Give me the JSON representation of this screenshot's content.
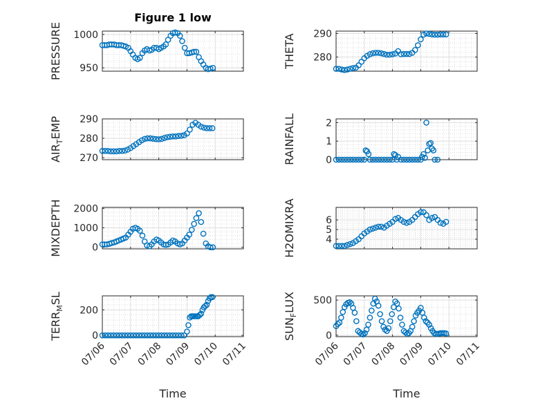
{
  "figure_title": "Figure 1 low",
  "chart_data": [
    {
      "type": "scatter",
      "ylabel": "PRESSURE",
      "title": "Figure 1 low",
      "xlabel": "",
      "xlim": [
        0,
        5
      ],
      "ylim": [
        945,
        1005
      ],
      "yticks": [
        950,
        1000
      ],
      "xticks": [
        0,
        1,
        2,
        3,
        4,
        5
      ],
      "grid": true,
      "marker_color": "#0072BD",
      "x": [
        0,
        0.08,
        0.16,
        0.25,
        0.33,
        0.42,
        0.5,
        0.58,
        0.67,
        0.75,
        0.83,
        0.92,
        1.0,
        1.08,
        1.17,
        1.25,
        1.33,
        1.42,
        1.5,
        1.58,
        1.67,
        1.75,
        1.83,
        1.92,
        2.0,
        2.08,
        2.17,
        2.25,
        2.33,
        2.42,
        2.5,
        2.58,
        2.67,
        2.75,
        2.83,
        2.92,
        3.0,
        3.08,
        3.17,
        3.25,
        3.33,
        3.42,
        3.5,
        3.58,
        3.67,
        3.75,
        3.83,
        3.92
      ],
      "y": [
        984,
        984,
        984,
        985,
        985,
        985,
        984,
        984,
        984,
        983,
        982,
        980,
        975,
        970,
        965,
        963,
        965,
        972,
        976,
        978,
        976,
        977,
        980,
        980,
        978,
        980,
        982,
        985,
        992,
        998,
        1002,
        1003,
        1002,
        998,
        990,
        980,
        972,
        972,
        973,
        974,
        974,
        966,
        960,
        955,
        950,
        948,
        949,
        950
      ]
    },
    {
      "type": "scatter",
      "ylabel": "THETA",
      "xlabel": "",
      "xlim": [
        0,
        5
      ],
      "ylim": [
        274,
        291
      ],
      "yticks": [
        280,
        290
      ],
      "xticks": [
        0,
        1,
        2,
        3,
        4,
        5
      ],
      "grid": true,
      "marker_color": "#0072BD",
      "x": [
        0,
        0.1,
        0.2,
        0.3,
        0.4,
        0.5,
        0.6,
        0.7,
        0.8,
        0.9,
        1.0,
        1.1,
        1.2,
        1.3,
        1.4,
        1.5,
        1.6,
        1.7,
        1.8,
        1.9,
        2.0,
        2.1,
        2.2,
        2.3,
        2.4,
        2.5,
        2.6,
        2.7,
        2.8,
        2.9,
        3.0,
        3.1,
        3.2,
        3.3,
        3.4,
        3.5,
        3.6,
        3.7,
        3.8,
        3.9
      ],
      "y": [
        275,
        275,
        274.7,
        274.5,
        274.7,
        275,
        275.3,
        275.5,
        276.5,
        278,
        279.5,
        280.5,
        281.2,
        281.6,
        281.8,
        281.8,
        281.6,
        281.3,
        281,
        281,
        281.2,
        281.5,
        282.5,
        281.2,
        281.3,
        281.3,
        281.3,
        281.8,
        283,
        285,
        287.5,
        289.5,
        290,
        289.8,
        289.6,
        289.5,
        289.5,
        289.6,
        289.6,
        289.6
      ]
    },
    {
      "type": "scatter",
      "ylabel": "AIR_TEMP",
      "xlabel": "",
      "xlim": [
        0,
        5
      ],
      "ylim": [
        269,
        290
      ],
      "yticks": [
        270,
        280,
        290
      ],
      "xticks": [
        0,
        1,
        2,
        3,
        4,
        5
      ],
      "grid": true,
      "marker_color": "#0072BD",
      "x": [
        0,
        0.1,
        0.2,
        0.3,
        0.4,
        0.5,
        0.6,
        0.7,
        0.8,
        0.9,
        1.0,
        1.1,
        1.2,
        1.3,
        1.4,
        1.5,
        1.6,
        1.7,
        1.8,
        1.9,
        2.0,
        2.1,
        2.2,
        2.3,
        2.4,
        2.5,
        2.6,
        2.7,
        2.8,
        2.9,
        3.0,
        3.1,
        3.2,
        3.3,
        3.4,
        3.5,
        3.6,
        3.7,
        3.8,
        3.9
      ],
      "y": [
        273.5,
        273.5,
        273.5,
        273.3,
        273.3,
        273.3,
        273.5,
        273.5,
        273.7,
        274.2,
        275,
        276,
        277,
        278,
        279,
        279.7,
        280,
        280,
        279.8,
        279.6,
        279.5,
        279.7,
        280.2,
        280.6,
        280.8,
        281,
        281,
        281.2,
        281.3,
        281.6,
        282.5,
        284.5,
        287,
        288,
        287,
        286,
        285.5,
        285.2,
        285.2,
        285.2
      ]
    },
    {
      "type": "scatter",
      "ylabel": "RAINFALL",
      "xlabel": "",
      "xlim": [
        0,
        5
      ],
      "ylim": [
        0,
        2.2
      ],
      "yticks": [
        0,
        1,
        2
      ],
      "xticks": [
        0,
        1,
        2,
        3,
        4,
        5
      ],
      "grid": true,
      "marker_color": "#0072BD",
      "x": [
        0,
        0.1,
        0.2,
        0.3,
        0.4,
        0.5,
        0.6,
        0.7,
        0.8,
        0.9,
        1.0,
        1.05,
        1.1,
        1.15,
        1.2,
        1.3,
        1.4,
        1.5,
        1.6,
        1.7,
        1.8,
        1.9,
        2.0,
        2.05,
        2.1,
        2.15,
        2.2,
        2.3,
        2.4,
        2.5,
        2.6,
        2.7,
        2.8,
        2.9,
        3.0,
        3.05,
        3.1,
        3.15,
        3.2,
        3.25,
        3.3,
        3.35,
        3.4,
        3.45,
        3.5,
        3.6
      ],
      "y": [
        0,
        0,
        0,
        0,
        0,
        0,
        0,
        0,
        0,
        0,
        0,
        0.5,
        0.45,
        0.3,
        0,
        0,
        0,
        0,
        0,
        0,
        0,
        0,
        0,
        0.3,
        0.25,
        0,
        0.15,
        0,
        0,
        0,
        0,
        0,
        0,
        0,
        0,
        0.15,
        0.3,
        0.1,
        2.0,
        0.5,
        0.85,
        0.9,
        0.6,
        0.5,
        0,
        0
      ]
    },
    {
      "type": "scatter",
      "ylabel": "MIXDEPTH",
      "xlabel": "",
      "xlim": [
        0,
        5
      ],
      "ylim": [
        -80,
        2050
      ],
      "yticks": [
        0,
        1000,
        2000
      ],
      "xticks": [
        0,
        1,
        2,
        3,
        4,
        5
      ],
      "grid": true,
      "marker_color": "#0072BD",
      "x": [
        0,
        0.08,
        0.16,
        0.25,
        0.33,
        0.42,
        0.5,
        0.58,
        0.67,
        0.75,
        0.83,
        0.92,
        1.0,
        1.08,
        1.17,
        1.25,
        1.33,
        1.42,
        1.5,
        1.58,
        1.67,
        1.75,
        1.83,
        1.92,
        2.0,
        2.08,
        2.17,
        2.25,
        2.33,
        2.42,
        2.5,
        2.58,
        2.67,
        2.75,
        2.83,
        2.92,
        3.0,
        3.08,
        3.17,
        3.25,
        3.33,
        3.42,
        3.5,
        3.58,
        3.67,
        3.75,
        3.83,
        3.92
      ],
      "y": [
        150,
        150,
        150,
        180,
        220,
        250,
        300,
        350,
        400,
        450,
        500,
        650,
        800,
        950,
        1000,
        950,
        850,
        600,
        300,
        100,
        50,
        150,
        300,
        400,
        350,
        250,
        150,
        120,
        150,
        250,
        350,
        300,
        200,
        150,
        200,
        350,
        500,
        650,
        900,
        1200,
        1500,
        1750,
        1300,
        700,
        200,
        50,
        0,
        0
      ]
    },
    {
      "type": "scatter",
      "ylabel": "H2OMIXRA",
      "xlabel": "",
      "xlim": [
        0,
        5
      ],
      "ylim": [
        3.0,
        7.3
      ],
      "yticks": [
        4,
        5,
        6
      ],
      "xticks": [
        0,
        1,
        2,
        3,
        4,
        5
      ],
      "grid": true,
      "marker_color": "#0072BD",
      "x": [
        0,
        0.1,
        0.2,
        0.3,
        0.4,
        0.5,
        0.6,
        0.7,
        0.8,
        0.9,
        1.0,
        1.1,
        1.2,
        1.3,
        1.4,
        1.5,
        1.6,
        1.7,
        1.8,
        1.9,
        2.0,
        2.1,
        2.2,
        2.3,
        2.4,
        2.5,
        2.6,
        2.7,
        2.8,
        2.9,
        3.0,
        3.1,
        3.2,
        3.3,
        3.4,
        3.5,
        3.6,
        3.7,
        3.8,
        3.9
      ],
      "y": [
        3.3,
        3.3,
        3.3,
        3.3,
        3.4,
        3.5,
        3.6,
        3.8,
        4.0,
        4.3,
        4.6,
        4.8,
        5.0,
        5.1,
        5.2,
        5.3,
        5.3,
        5.2,
        5.4,
        5.6,
        5.8,
        6.1,
        6.2,
        6.0,
        5.8,
        5.7,
        5.8,
        6.0,
        6.3,
        6.6,
        6.8,
        6.8,
        6.5,
        6.0,
        6.2,
        6.3,
        6.0,
        5.7,
        5.6,
        5.8
      ]
    },
    {
      "type": "scatter",
      "ylabel": "TERR_MSL",
      "xlabel": "Time",
      "xlim": [
        0,
        5
      ],
      "ylim": [
        -10,
        310
      ],
      "yticks": [
        0,
        200
      ],
      "xticks": [
        0,
        1,
        2,
        3,
        4,
        5
      ],
      "xticklabels": [
        "07/06",
        "07/07",
        "07/08",
        "07/09",
        "07/10",
        "07/11"
      ],
      "grid": true,
      "marker_color": "#0072BD",
      "x": [
        0,
        0.1,
        0.2,
        0.3,
        0.4,
        0.5,
        0.6,
        0.7,
        0.8,
        0.9,
        1.0,
        1.1,
        1.2,
        1.3,
        1.4,
        1.5,
        1.6,
        1.7,
        1.8,
        1.9,
        2.0,
        2.1,
        2.2,
        2.3,
        2.4,
        2.5,
        2.6,
        2.7,
        2.8,
        2.9,
        3.0,
        3.05,
        3.1,
        3.15,
        3.2,
        3.25,
        3.3,
        3.35,
        3.4,
        3.45,
        3.5,
        3.55,
        3.6,
        3.65,
        3.7,
        3.75,
        3.8,
        3.85,
        3.9
      ],
      "y": [
        0,
        0,
        0,
        0,
        0,
        0,
        0,
        0,
        0,
        0,
        0,
        0,
        0,
        0,
        0,
        0,
        0,
        0,
        0,
        0,
        0,
        0,
        0,
        0,
        0,
        0,
        0,
        0,
        0,
        0,
        30,
        80,
        140,
        150,
        150,
        150,
        150,
        150,
        150,
        160,
        170,
        200,
        220,
        230,
        240,
        270,
        290,
        300,
        300
      ]
    },
    {
      "type": "scatter",
      "ylabel": "SUN_FLUX",
      "xlabel": "Time",
      "xlim": [
        0,
        5
      ],
      "ylim": [
        -20,
        560
      ],
      "yticks": [
        0,
        500
      ],
      "xticks": [
        0,
        1,
        2,
        3,
        4,
        5
      ],
      "xticklabels": [
        "07/06",
        "07/07",
        "07/08",
        "07/09",
        "07/10",
        "07/11"
      ],
      "grid": true,
      "marker_color": "#0072BD",
      "x": [
        0,
        0.06,
        0.12,
        0.18,
        0.24,
        0.3,
        0.36,
        0.42,
        0.48,
        0.54,
        0.6,
        0.66,
        0.72,
        0.78,
        0.84,
        0.9,
        0.96,
        1.02,
        1.08,
        1.14,
        1.2,
        1.26,
        1.32,
        1.38,
        1.44,
        1.5,
        1.56,
        1.62,
        1.68,
        1.74,
        1.8,
        1.86,
        1.92,
        1.98,
        2.04,
        2.1,
        2.16,
        2.22,
        2.28,
        2.34,
        2.4,
        2.46,
        2.52,
        2.58,
        2.64,
        2.7,
        2.76,
        2.82,
        2.88,
        2.94,
        3.0,
        3.06,
        3.12,
        3.18,
        3.24,
        3.3,
        3.36,
        3.42,
        3.48,
        3.54,
        3.6,
        3.66,
        3.72,
        3.78,
        3.84,
        3.9
      ],
      "y": [
        130,
        160,
        180,
        250,
        330,
        400,
        440,
        460,
        470,
        450,
        390,
        320,
        200,
        60,
        40,
        20,
        10,
        30,
        80,
        150,
        250,
        350,
        450,
        520,
        480,
        420,
        300,
        200,
        120,
        80,
        60,
        100,
        200,
        300,
        400,
        480,
        450,
        380,
        250,
        150,
        60,
        40,
        20,
        30,
        60,
        120,
        200,
        280,
        320,
        350,
        390,
        320,
        250,
        200,
        180,
        150,
        100,
        60,
        30,
        20,
        20,
        25,
        30,
        30,
        30,
        25
      ]
    }
  ]
}
